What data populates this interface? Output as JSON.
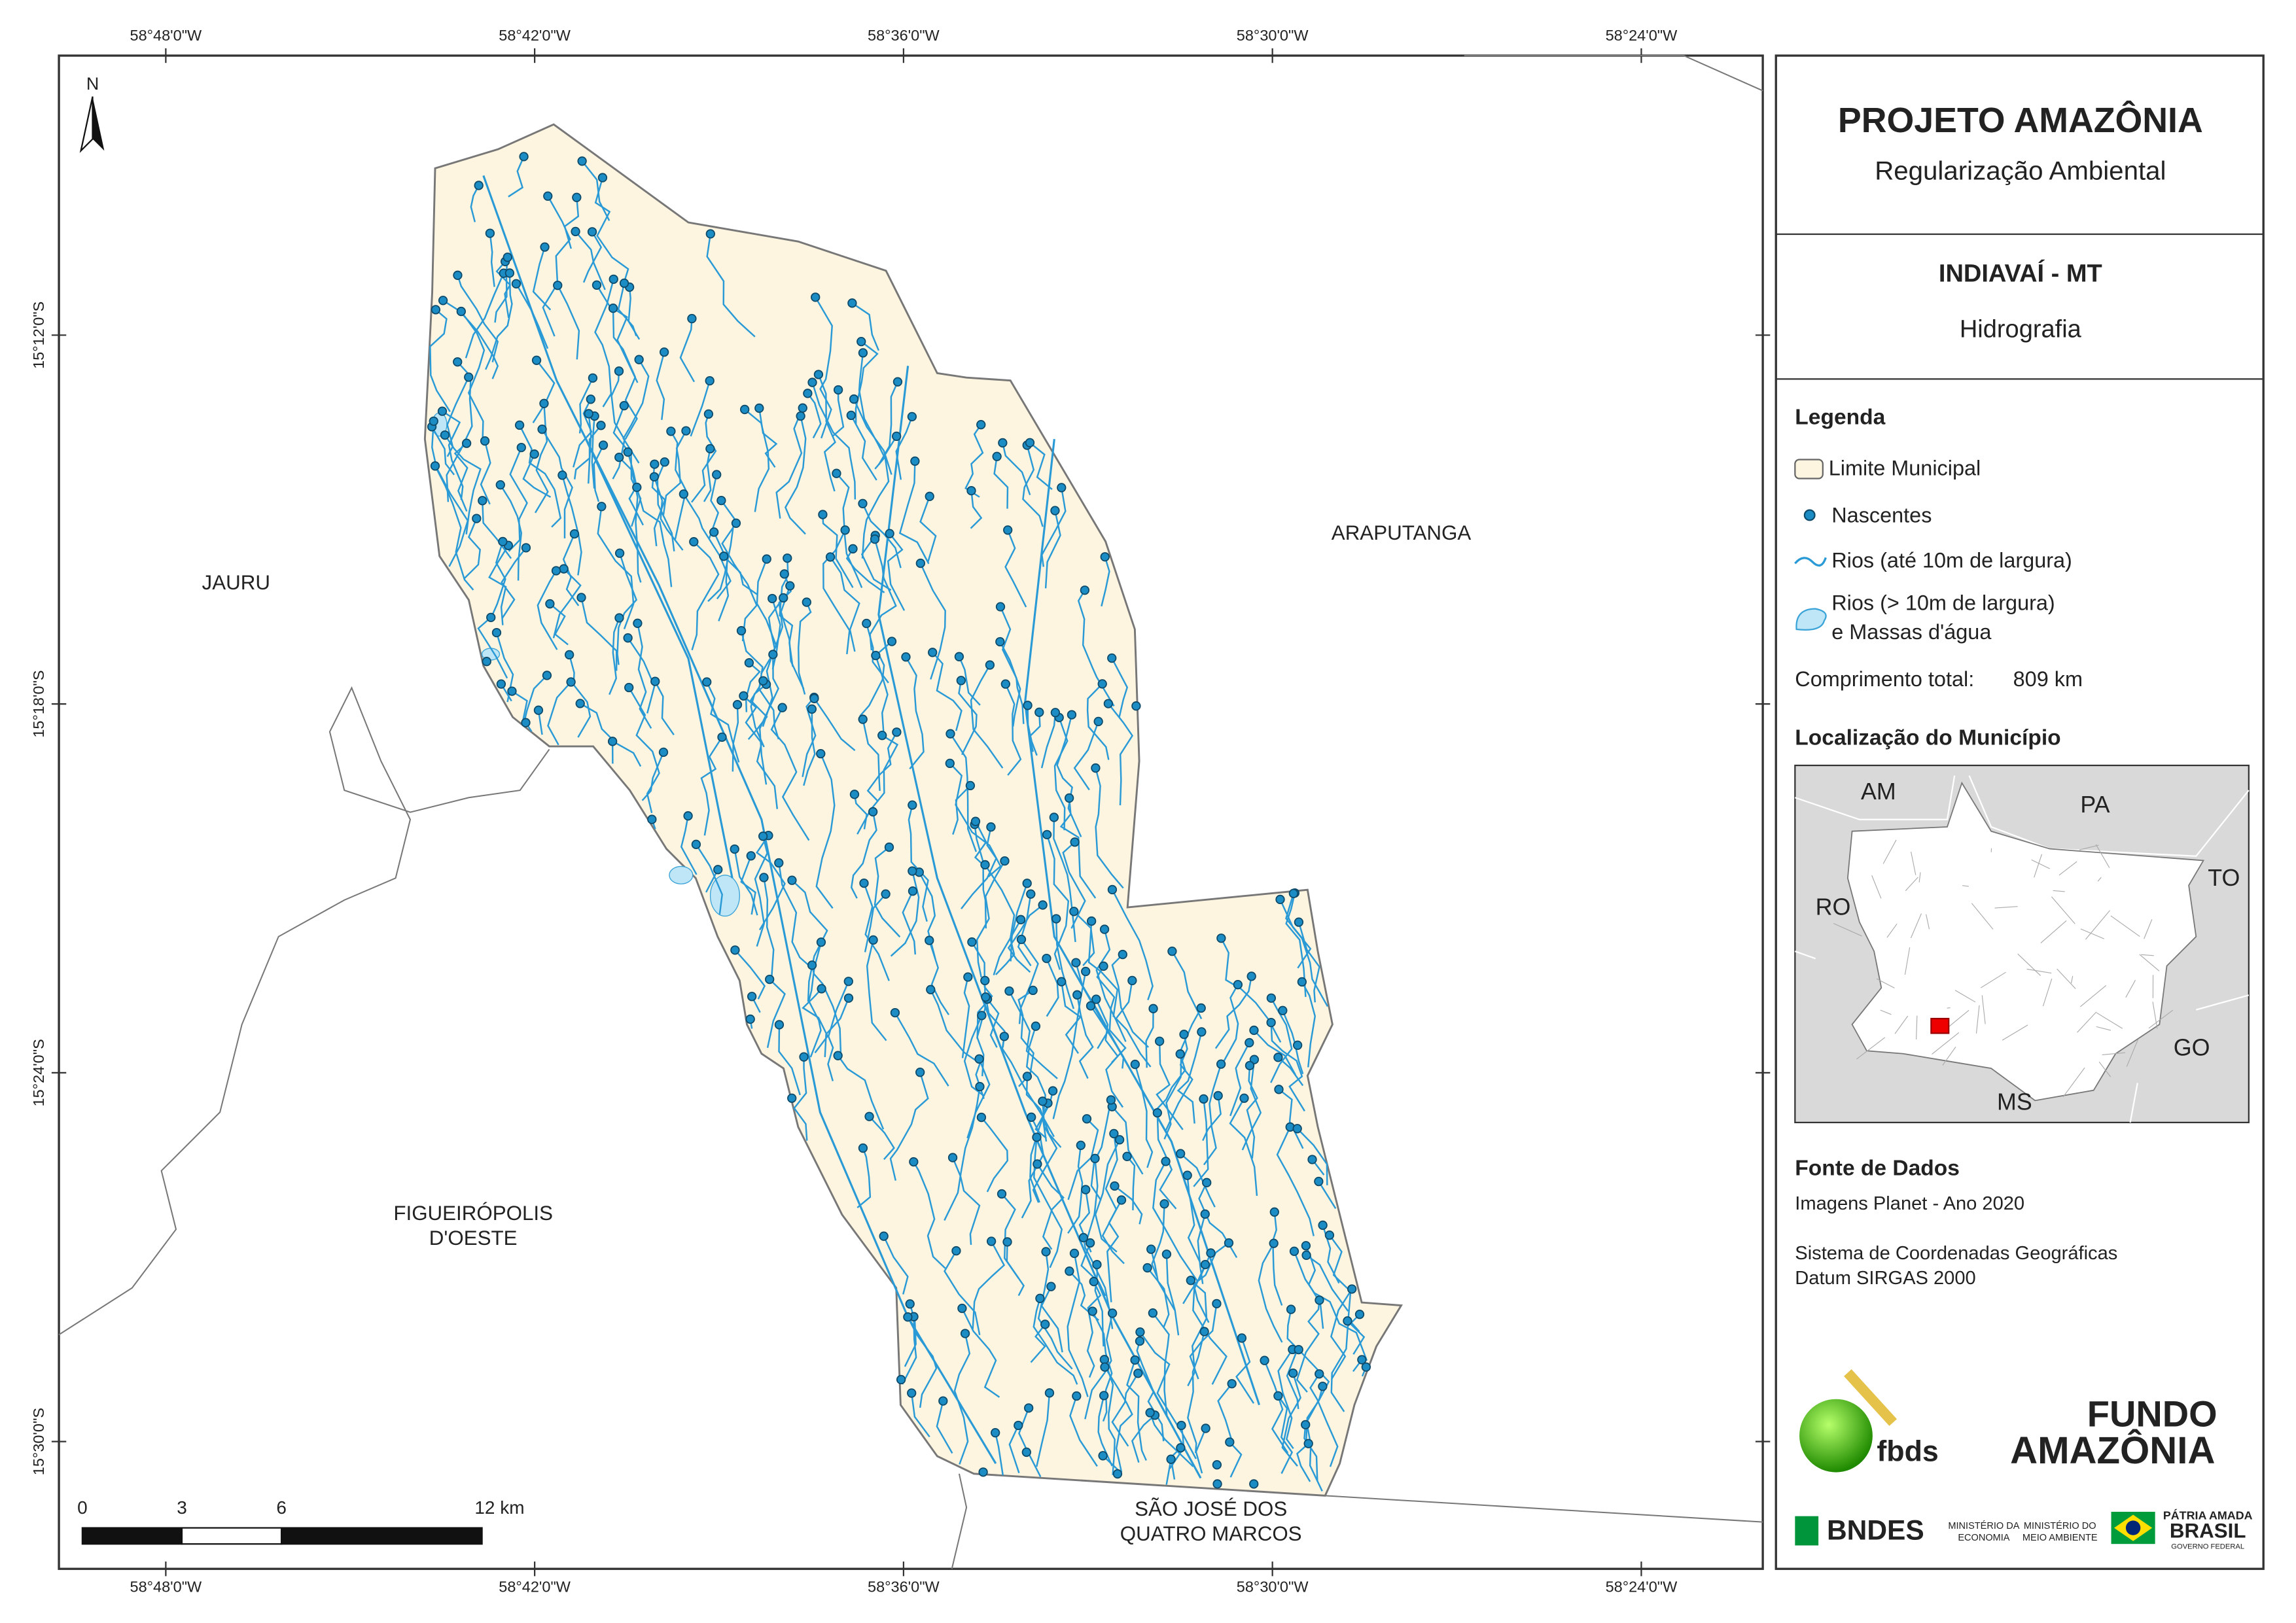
{
  "map": {
    "top_ticks": [
      "58°48'0\"W",
      "58°42'0\"W",
      "58°36'0\"W",
      "58°30'0\"W",
      "58°24'0\"W"
    ],
    "left_ticks": [
      "15°12'0\"S",
      "15°18'0\"S",
      "15°24'0\"S",
      "15°30'0\"S"
    ],
    "north": "N",
    "places": [
      [
        "JAURU"
      ],
      [
        "ARAPUTANGA"
      ],
      [
        "FIGUEIRÓPOLIS",
        "D'OESTE"
      ],
      [
        "SÃO JOSÉ DOS",
        "QUATRO MARCOS"
      ]
    ],
    "scale_labels": [
      "0",
      "3",
      "6",
      "12 km"
    ]
  },
  "panel": {
    "title": "PROJETO AMAZÔNIA",
    "subtitle": "Regularização Ambiental",
    "municipality": "INDIAVAÍ - MT",
    "theme": "Hidrografia",
    "legend": {
      "title": "Legenda",
      "items": [
        "Limite Municipal",
        "Nascentes",
        "Rios (até 10m de largura)",
        [
          "Rios (> 10m de largura)",
          "e Massas d'água"
        ]
      ]
    },
    "total_length": {
      "label": "Comprimento total:",
      "value": "809 km"
    },
    "location": {
      "title": "Localização do Município",
      "states": [
        "AM",
        "PA",
        "TO",
        "RO",
        "GO",
        "MS"
      ]
    },
    "sources": {
      "title": "Fonte de Dados",
      "lines": [
        "Imagens Planet - Ano 2020",
        "Sistema de Coordenadas Geográficas",
        "Datum SIRGAS 2000"
      ]
    },
    "logos": {
      "fbds": "fbds",
      "fundo": "FUNDO",
      "amazonia": "AMAZÔNIA",
      "bndes": "BNDES",
      "min1": [
        "MINISTÉRIO DA",
        "ECONOMIA"
      ],
      "min2": [
        "MINISTÉRIO DO",
        "MEIO AMBIENTE"
      ],
      "patria": "PÁTRIA AMADA",
      "brasil": "BRASIL",
      "gov": "GOVERNO FEDERAL"
    }
  }
}
